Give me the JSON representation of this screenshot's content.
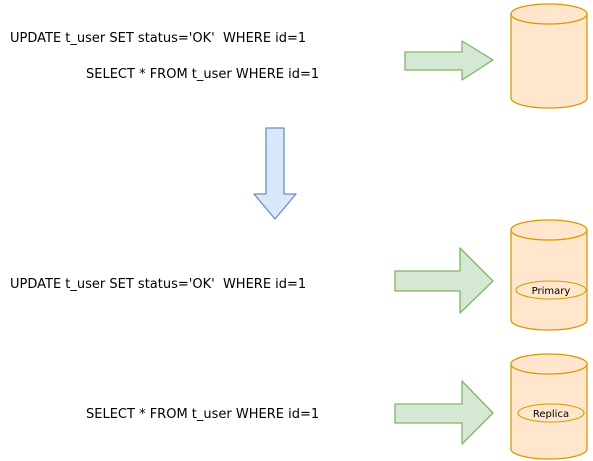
{
  "top": {
    "update_sql": "UPDATE t_user SET status='OK'  WHERE id=1",
    "select_sql": "SELECT * FROM t_user WHERE id=1"
  },
  "bottom": {
    "update_sql": "UPDATE t_user SET status='OK'  WHERE id=1",
    "select_sql": "SELECT * FROM t_user WHERE id=1",
    "primary_label": "Primary",
    "replica_label": "Replica"
  },
  "colors": {
    "db_fill": "#ffe6cc",
    "db_stroke": "#d79b00",
    "arrow_right_fill": "#d5e8d4",
    "arrow_right_stroke": "#82b366",
    "arrow_down_fill": "#dae8fc",
    "arrow_down_stroke": "#6c8ebf"
  }
}
